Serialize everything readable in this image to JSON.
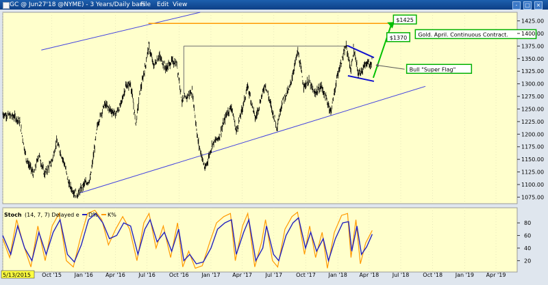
{
  "window": {
    "title": "GC @ Jun27'18 @NYME) -  3 Years/Daily bars",
    "menu": [
      "File",
      "Edit",
      "View"
    ],
    "buttons": [
      "-",
      "□",
      "×"
    ]
  },
  "chart_data": [
    {
      "type": "line",
      "title": "",
      "ylim": [
        1062,
        1442
      ],
      "yticks": [
        1075,
        1100,
        1125,
        1150,
        1175,
        1200,
        1225,
        1250,
        1275,
        1300,
        1325,
        1350,
        1375,
        1400,
        1425
      ],
      "xlim": [
        "2015-05-13",
        "2019-06-01"
      ],
      "x_labels": [
        {
          "date": "2015-05-13",
          "label": "5/13/2015"
        },
        {
          "date": "2015-10-01",
          "label": "Oct '15"
        },
        {
          "date": "2016-01-01",
          "label": "Jan '16"
        },
        {
          "date": "2016-04-01",
          "label": "Apr '16"
        },
        {
          "date": "2016-07-01",
          "label": "Jul '16"
        },
        {
          "date": "2016-10-01",
          "label": "Oct '16"
        },
        {
          "date": "2017-01-01",
          "label": "Jan '17"
        },
        {
          "date": "2017-04-01",
          "label": "Apr '17"
        },
        {
          "date": "2017-07-01",
          "label": "Jul '17"
        },
        {
          "date": "2017-10-01",
          "label": "Oct '17"
        },
        {
          "date": "2018-01-01",
          "label": "Jan '18"
        },
        {
          "date": "2018-04-01",
          "label": "Apr '18"
        },
        {
          "date": "2018-07-01",
          "label": "Jul '18"
        },
        {
          "date": "2018-10-01",
          "label": "Oct '18"
        },
        {
          "date": "2019-01-01",
          "label": "Jan '19"
        },
        {
          "date": "2019-04-01",
          "label": "Apr '19"
        }
      ],
      "price_points": [
        [
          "2015-05-13",
          1240
        ],
        [
          "2015-06-15",
          1235
        ],
        [
          "2015-07-01",
          1225
        ],
        [
          "2015-07-20",
          1150
        ],
        [
          "2015-08-10",
          1120
        ],
        [
          "2015-08-25",
          1160
        ],
        [
          "2015-09-10",
          1120
        ],
        [
          "2015-10-01",
          1145
        ],
        [
          "2015-10-15",
          1185
        ],
        [
          "2015-11-05",
          1145
        ],
        [
          "2015-11-20",
          1100
        ],
        [
          "2015-12-03",
          1085
        ],
        [
          "2015-12-15",
          1080
        ],
        [
          "2016-01-01",
          1100
        ],
        [
          "2016-01-20",
          1110
        ],
        [
          "2016-02-10",
          1220
        ],
        [
          "2016-03-01",
          1260
        ],
        [
          "2016-03-15",
          1250
        ],
        [
          "2016-04-01",
          1240
        ],
        [
          "2016-04-15",
          1255
        ],
        [
          "2016-05-01",
          1295
        ],
        [
          "2016-05-15",
          1300
        ],
        [
          "2016-05-30",
          1220
        ],
        [
          "2016-06-10",
          1280
        ],
        [
          "2016-06-25",
          1330
        ],
        [
          "2016-07-06",
          1375
        ],
        [
          "2016-07-20",
          1335
        ],
        [
          "2016-08-05",
          1355
        ],
        [
          "2016-08-25",
          1330
        ],
        [
          "2016-09-10",
          1345
        ],
        [
          "2016-09-25",
          1340
        ],
        [
          "2016-10-10",
          1265
        ],
        [
          "2016-10-25",
          1275
        ],
        [
          "2016-11-08",
          1285
        ],
        [
          "2016-11-25",
          1185
        ],
        [
          "2016-12-15",
          1130
        ],
        [
          "2017-01-05",
          1180
        ],
        [
          "2017-01-25",
          1195
        ],
        [
          "2017-02-15",
          1240
        ],
        [
          "2017-03-01",
          1255
        ],
        [
          "2017-03-15",
          1205
        ],
        [
          "2017-04-01",
          1250
        ],
        [
          "2017-04-17",
          1295
        ],
        [
          "2017-05-09",
          1230
        ],
        [
          "2017-06-06",
          1300
        ],
        [
          "2017-06-25",
          1250
        ],
        [
          "2017-07-10",
          1215
        ],
        [
          "2017-07-25",
          1265
        ],
        [
          "2017-08-15",
          1290
        ],
        [
          "2017-09-08",
          1365
        ],
        [
          "2017-09-25",
          1295
        ],
        [
          "2017-10-10",
          1305
        ],
        [
          "2017-10-25",
          1280
        ],
        [
          "2017-11-15",
          1295
        ],
        [
          "2017-12-12",
          1245
        ],
        [
          "2018-01-01",
          1320
        ],
        [
          "2018-01-25",
          1375
        ],
        [
          "2018-02-08",
          1325
        ],
        [
          "2018-02-15",
          1370
        ],
        [
          "2018-03-01",
          1320
        ],
        [
          "2018-03-15",
          1330
        ],
        [
          "2018-03-28",
          1345
        ],
        [
          "2018-04-05",
          1335
        ],
        [
          "2018-04-10",
          1350
        ]
      ],
      "stoch": {
        "label": "Stoch",
        "params": "(14, 7, 7) Delayed e",
        "series_labels": [
          "D%",
          "K%"
        ],
        "ylim": [
          2,
          104
        ],
        "yticks": [
          20,
          40,
          60,
          80
        ],
        "d_points": [
          [
            "2015-05-13",
            60
          ],
          [
            "2015-06-05",
            30
          ],
          [
            "2015-06-25",
            75
          ],
          [
            "2015-07-15",
            40
          ],
          [
            "2015-08-05",
            20
          ],
          [
            "2015-08-25",
            65
          ],
          [
            "2015-09-15",
            30
          ],
          [
            "2015-10-05",
            65
          ],
          [
            "2015-10-25",
            85
          ],
          [
            "2015-11-15",
            30
          ],
          [
            "2015-12-05",
            18
          ],
          [
            "2015-12-25",
            45
          ],
          [
            "2016-01-15",
            85
          ],
          [
            "2016-02-05",
            95
          ],
          [
            "2016-02-25",
            80
          ],
          [
            "2016-03-15",
            55
          ],
          [
            "2016-04-05",
            60
          ],
          [
            "2016-04-25",
            80
          ],
          [
            "2016-05-15",
            75
          ],
          [
            "2016-06-05",
            30
          ],
          [
            "2016-06-25",
            70
          ],
          [
            "2016-07-10",
            85
          ],
          [
            "2016-07-30",
            50
          ],
          [
            "2016-08-20",
            65
          ],
          [
            "2016-09-10",
            35
          ],
          [
            "2016-09-30",
            70
          ],
          [
            "2016-10-15",
            20
          ],
          [
            "2016-11-01",
            30
          ],
          [
            "2016-11-20",
            15
          ],
          [
            "2016-12-10",
            18
          ],
          [
            "2017-01-01",
            40
          ],
          [
            "2017-01-20",
            70
          ],
          [
            "2017-02-10",
            80
          ],
          [
            "2017-03-01",
            85
          ],
          [
            "2017-03-15",
            30
          ],
          [
            "2017-04-05",
            65
          ],
          [
            "2017-04-20",
            85
          ],
          [
            "2017-05-10",
            20
          ],
          [
            "2017-05-30",
            40
          ],
          [
            "2017-06-10",
            75
          ],
          [
            "2017-06-30",
            30
          ],
          [
            "2017-07-15",
            20
          ],
          [
            "2017-08-05",
            60
          ],
          [
            "2017-08-25",
            80
          ],
          [
            "2017-09-10",
            88
          ],
          [
            "2017-09-30",
            40
          ],
          [
            "2017-10-15",
            65
          ],
          [
            "2017-11-01",
            35
          ],
          [
            "2017-11-20",
            55
          ],
          [
            "2017-12-05",
            20
          ],
          [
            "2017-12-25",
            55
          ],
          [
            "2018-01-15",
            80
          ],
          [
            "2018-02-01",
            82
          ],
          [
            "2018-02-10",
            35
          ],
          [
            "2018-02-25",
            75
          ],
          [
            "2018-03-10",
            30
          ],
          [
            "2018-03-25",
            42
          ],
          [
            "2018-04-10",
            62
          ]
        ],
        "k_points": [
          [
            "2015-05-13",
            55
          ],
          [
            "2015-06-02",
            25
          ],
          [
            "2015-06-22",
            85
          ],
          [
            "2015-07-12",
            45
          ],
          [
            "2015-08-02",
            10
          ],
          [
            "2015-08-22",
            75
          ],
          [
            "2015-09-12",
            20
          ],
          [
            "2015-10-02",
            75
          ],
          [
            "2015-10-22",
            95
          ],
          [
            "2015-11-12",
            20
          ],
          [
            "2015-12-02",
            10
          ],
          [
            "2015-12-22",
            55
          ],
          [
            "2016-01-12",
            95
          ],
          [
            "2016-02-02",
            100
          ],
          [
            "2016-02-22",
            85
          ],
          [
            "2016-03-12",
            45
          ],
          [
            "2016-04-02",
            70
          ],
          [
            "2016-04-22",
            90
          ],
          [
            "2016-05-12",
            70
          ],
          [
            "2016-06-02",
            20
          ],
          [
            "2016-06-22",
            80
          ],
          [
            "2016-07-07",
            95
          ],
          [
            "2016-07-27",
            40
          ],
          [
            "2016-08-17",
            75
          ],
          [
            "2016-09-07",
            25
          ],
          [
            "2016-09-27",
            80
          ],
          [
            "2016-10-12",
            10
          ],
          [
            "2016-10-29",
            35
          ],
          [
            "2016-11-17",
            8
          ],
          [
            "2016-12-07",
            12
          ],
          [
            "2016-12-29",
            50
          ],
          [
            "2017-01-17",
            80
          ],
          [
            "2017-02-07",
            90
          ],
          [
            "2017-02-26",
            95
          ],
          [
            "2017-03-12",
            20
          ],
          [
            "2017-04-02",
            75
          ],
          [
            "2017-04-17",
            95
          ],
          [
            "2017-05-07",
            10
          ],
          [
            "2017-05-27",
            50
          ],
          [
            "2017-06-07",
            85
          ],
          [
            "2017-06-27",
            20
          ],
          [
            "2017-07-12",
            10
          ],
          [
            "2017-08-02",
            70
          ],
          [
            "2017-08-22",
            90
          ],
          [
            "2017-09-07",
            97
          ],
          [
            "2017-09-27",
            30
          ],
          [
            "2017-10-12",
            75
          ],
          [
            "2017-10-29",
            25
          ],
          [
            "2017-11-17",
            65
          ],
          [
            "2017-12-02",
            8
          ],
          [
            "2017-12-22",
            65
          ],
          [
            "2018-01-12",
            92
          ],
          [
            "2018-01-29",
            95
          ],
          [
            "2018-02-08",
            25
          ],
          [
            "2018-02-22",
            85
          ],
          [
            "2018-03-07",
            15
          ],
          [
            "2018-03-22",
            48
          ],
          [
            "2018-04-10",
            68
          ]
        ]
      },
      "annotations": [
        {
          "text": "$1425",
          "date": "2018-06-10",
          "price": 1427,
          "color": "#00b000"
        },
        {
          "text": "$1370",
          "date": "2018-05-22",
          "price": 1392,
          "color": "#00b000"
        },
        {
          "text": "Gold. April. Continuous Contract.",
          "date": "2018-08-12",
          "price": 1398,
          "color": "#00b000"
        },
        {
          "text": "Bull \"Super Flag\"",
          "date": "2018-07-18",
          "price": 1329,
          "color": "#00b000"
        }
      ],
      "colors": {
        "background": "#ffffcc",
        "price": "#000000",
        "trendline": "#4040e0",
        "resistance_1425": "#ff9900",
        "resistance_1370": "#707070",
        "arrow": "#00c000",
        "stoch_d": "#2020c0",
        "stoch_k": "#ff9900"
      }
    }
  ]
}
